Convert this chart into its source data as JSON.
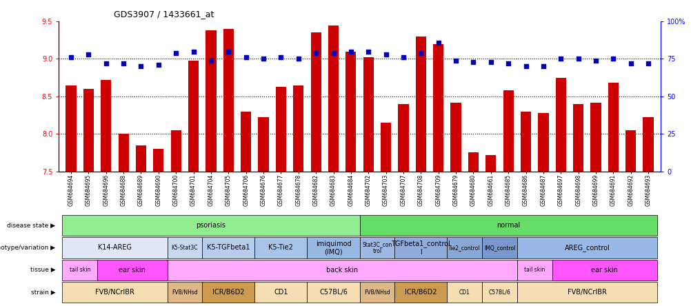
{
  "title": "GDS3907 / 1433661_at",
  "samples": [
    "GSM684694",
    "GSM684695",
    "GSM684696",
    "GSM684688",
    "GSM684689",
    "GSM684690",
    "GSM684700",
    "GSM684701",
    "GSM684704",
    "GSM684705",
    "GSM684706",
    "GSM684676",
    "GSM684677",
    "GSM684678",
    "GSM684682",
    "GSM684683",
    "GSM684684",
    "GSM684702",
    "GSM684703",
    "GSM684707",
    "GSM684708",
    "GSM684709",
    "GSM684679",
    "GSM684680",
    "GSM684661",
    "GSM684685",
    "GSM684686",
    "GSM684687",
    "GSM684697",
    "GSM684698",
    "GSM684699",
    "GSM684691",
    "GSM684692",
    "GSM684693"
  ],
  "bar_values": [
    8.65,
    8.6,
    8.72,
    8.0,
    7.85,
    7.8,
    8.05,
    8.98,
    9.38,
    9.4,
    8.3,
    8.22,
    8.63,
    8.65,
    9.35,
    9.45,
    9.1,
    9.02,
    8.15,
    8.4,
    9.3,
    9.2,
    8.42,
    7.75,
    7.72,
    8.58,
    8.3,
    8.28,
    8.75,
    8.4,
    8.42,
    8.68,
    8.05,
    8.22
  ],
  "dot_pct_values": [
    76,
    78,
    72,
    72,
    70,
    71,
    79,
    80,
    74,
    80,
    76,
    75,
    76,
    75,
    79,
    79,
    80,
    80,
    78,
    76,
    79,
    86,
    74,
    73,
    73,
    72,
    70,
    70,
    75,
    75,
    74,
    75,
    72,
    72
  ],
  "ylim": [
    7.5,
    9.5
  ],
  "yticks": [
    7.5,
    8.0,
    8.5,
    9.0,
    9.5
  ],
  "right_yticks": [
    0,
    25,
    50,
    75,
    100
  ],
  "right_ylim": [
    0,
    100
  ],
  "disease_state_groups": [
    {
      "label": "psoriasis",
      "start": 0,
      "end": 16,
      "color": "#90EE90"
    },
    {
      "label": "normal",
      "start": 17,
      "end": 33,
      "color": "#66DD66"
    }
  ],
  "genotype_groups": [
    {
      "label": "K14-AREG",
      "start": 0,
      "end": 5,
      "color": "#E0E8F8"
    },
    {
      "label": "K5-Stat3C",
      "start": 6,
      "end": 7,
      "color": "#C8D8F0"
    },
    {
      "label": "K5-TGFbeta1",
      "start": 8,
      "end": 10,
      "color": "#B8CCEC"
    },
    {
      "label": "K5-Tie2",
      "start": 11,
      "end": 13,
      "color": "#A8C4E8"
    },
    {
      "label": "imiquimod\n(IMQ)",
      "start": 14,
      "end": 16,
      "color": "#98B8E4"
    },
    {
      "label": "Stat3C_con\ntrol",
      "start": 17,
      "end": 18,
      "color": "#A0B8E4"
    },
    {
      "label": "TGFbeta1_control\nl",
      "start": 19,
      "end": 21,
      "color": "#90ACDC"
    },
    {
      "label": "Tie2_control",
      "start": 22,
      "end": 23,
      "color": "#88A8D8"
    },
    {
      "label": "IMQ_control",
      "start": 24,
      "end": 25,
      "color": "#7898D0"
    },
    {
      "label": "AREG_control",
      "start": 26,
      "end": 33,
      "color": "#98B8E8"
    }
  ],
  "tissue_groups": [
    {
      "label": "tail skin",
      "start": 0,
      "end": 1,
      "color": "#FFAAFF"
    },
    {
      "label": "ear skin",
      "start": 2,
      "end": 5,
      "color": "#FF55FF"
    },
    {
      "label": "back skin",
      "start": 6,
      "end": 25,
      "color": "#FFAAFF"
    },
    {
      "label": "tail skin",
      "start": 26,
      "end": 27,
      "color": "#FFAAFF"
    },
    {
      "label": "ear skin",
      "start": 28,
      "end": 33,
      "color": "#FF55FF"
    }
  ],
  "strain_groups": [
    {
      "label": "FVB/NCrIBR",
      "start": 0,
      "end": 5,
      "color": "#F5DEB3"
    },
    {
      "label": "FVB/NHsd",
      "start": 6,
      "end": 7,
      "color": "#DEB887"
    },
    {
      "label": "ICR/B6D2",
      "start": 8,
      "end": 10,
      "color": "#CD9B4F"
    },
    {
      "label": "CD1",
      "start": 11,
      "end": 13,
      "color": "#F5DEB3"
    },
    {
      "label": "C57BL/6",
      "start": 14,
      "end": 16,
      "color": "#F5DEB3"
    },
    {
      "label": "FVB/NHsd",
      "start": 17,
      "end": 18,
      "color": "#DEB887"
    },
    {
      "label": "ICR/B6D2",
      "start": 19,
      "end": 21,
      "color": "#CD9B4F"
    },
    {
      "label": "CD1",
      "start": 22,
      "end": 23,
      "color": "#F5DEB3"
    },
    {
      "label": "C57BL/6",
      "start": 24,
      "end": 25,
      "color": "#F5DEB3"
    },
    {
      "label": "FVB/NCrIBR",
      "start": 26,
      "end": 33,
      "color": "#F5DEB3"
    }
  ],
  "row_labels": [
    "disease state",
    "genotype/variation",
    "tissue",
    "strain"
  ],
  "bar_color": "#CC0000",
  "dot_color": "#0000BB",
  "background_color": "#FFFFFF"
}
